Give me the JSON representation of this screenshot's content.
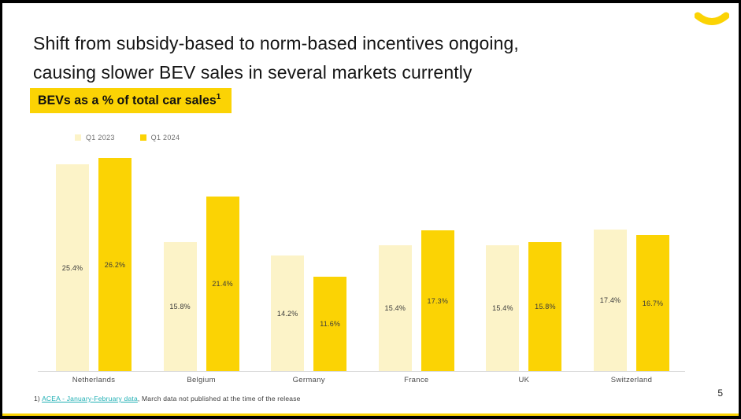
{
  "slide": {
    "title_line1": "Shift from subsidy-based to norm-based incentives ongoing,",
    "title_line2": "causing slower BEV sales in several markets currently",
    "highlight_label": "BEVs as a % of total car sales",
    "highlight_superscript": "1",
    "page_number": "5"
  },
  "footnote": {
    "prefix": "1) ",
    "link_text": "ACEA - January-February data",
    "rest": ", March data not published at the time of the release"
  },
  "colors": {
    "accent_yellow": "#FBD304",
    "cream": "#FCF3C8",
    "link_teal": "#1FAFB4",
    "axis_gray": "#DADADA",
    "frame_black": "#000000"
  },
  "chart_data": {
    "type": "bar",
    "title": "BEVs as a % of total car sales",
    "categories": [
      "Netherlands",
      "Belgium",
      "Germany",
      "France",
      "UK",
      "Switzerland"
    ],
    "series": [
      {
        "name": "Q1 2023",
        "color": "#FCF3C8",
        "values": [
          25.4,
          15.8,
          14.2,
          15.4,
          15.4,
          17.4
        ]
      },
      {
        "name": "Q1 2024",
        "color": "#FBD304",
        "values": [
          26.2,
          21.4,
          11.6,
          17.3,
          15.8,
          16.7
        ]
      }
    ],
    "value_suffix": "%",
    "xlabel": "",
    "ylabel": "",
    "ylim": [
      0,
      28
    ],
    "grid": false,
    "legend_position": "top-left",
    "value_labels": "centered-inside-bars"
  }
}
